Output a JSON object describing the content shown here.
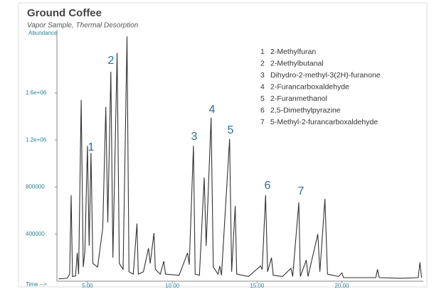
{
  "chart_data": {
    "type": "line",
    "title": "Ground Coffee",
    "subtitle": "Vapor Sample, Thermal Desorption",
    "y_label": "Abundance",
    "x_label": "Time -->",
    "color": "#333333",
    "x": [
      3.3,
      3.8,
      3.95,
      4.04,
      4.12,
      4.3,
      4.4,
      4.48,
      4.63,
      4.75,
      4.85,
      5.0,
      5.1,
      5.21,
      5.32,
      5.6,
      5.9,
      6.08,
      6.2,
      6.38,
      6.5,
      6.75,
      6.88,
      7.1,
      7.33,
      7.45,
      7.7,
      7.92,
      8.0,
      8.3,
      8.6,
      8.7,
      8.92,
      9.0,
      9.3,
      9.5,
      9.6,
      10.4,
      10.9,
      11.0,
      11.25,
      11.35,
      11.6,
      11.88,
      12.0,
      12.29,
      12.42,
      12.7,
      12.8,
      12.9,
      13.38,
      13.5,
      13.71,
      13.8,
      14.5,
      15.2,
      15.3,
      15.5,
      15.62,
      15.85,
      15.95,
      16.5,
      17.0,
      17.1,
      17.46,
      17.55,
      17.9,
      18.0,
      18.58,
      18.7,
      19.0,
      19.15,
      19.8,
      20.0,
      20.1,
      22.0,
      22.1,
      22.2,
      23.5,
      24.5,
      24.6,
      24.7
    ],
    "values": [
      20000,
      25000,
      60000,
      730000,
      40000,
      45000,
      240000,
      60000,
      1540000,
      120000,
      250000,
      1150000,
      300000,
      1090000,
      150000,
      120000,
      450000,
      1480000,
      500000,
      1780000,
      200000,
      1940000,
      150000,
      100000,
      2080000,
      80000,
      60000,
      490000,
      60000,
      80000,
      280000,
      150000,
      410000,
      100000,
      60000,
      170000,
      60000,
      50000,
      240000,
      140000,
      1150000,
      60000,
      50000,
      880000,
      300000,
      1390000,
      120000,
      60000,
      130000,
      50000,
      1210000,
      80000,
      640000,
      60000,
      40000,
      130000,
      100000,
      730000,
      80000,
      200000,
      50000,
      40000,
      110000,
      40000,
      670000,
      40000,
      180000,
      40000,
      400000,
      80000,
      700000,
      60000,
      40000,
      70000,
      30000,
      30000,
      100000,
      30000,
      25000,
      30000,
      160000,
      30000
    ],
    "xlim": [
      3.2,
      24.8
    ],
    "ylim": [
      0,
      2100000
    ],
    "xticks": [
      {
        "value": 5,
        "label": "5.00"
      },
      {
        "value": 10,
        "label": "10.00"
      },
      {
        "value": 15,
        "label": "15.00"
      },
      {
        "value": 20,
        "label": "20.00"
      }
    ],
    "yticks": [
      400000,
      800000,
      {
        "value": 1200000,
        "label": "1.2e+06"
      },
      {
        "value": 1600000,
        "label": "1.6e+06"
      }
    ],
    "peak_labels": [
      "1",
      "2",
      "3",
      "4",
      "5",
      "6",
      "7"
    ],
    "legend_items": [
      {
        "number": "1",
        "name": "2-Methylfuran"
      },
      {
        "number": "2",
        "name": "2-Methylbutanal"
      },
      {
        "number": "3",
        "name": "Dihydro-2-methyl-3(2H)-furanone"
      },
      {
        "number": "4",
        "name": "2-Furancarboxaldehyde"
      },
      {
        "number": "5",
        "name": "2-Furanmethanol"
      },
      {
        "number": "6",
        "name": "2,5-Dimethylpyrazine"
      },
      {
        "number": "7",
        "name": "5-Methyl-2-furancarboxaldehyde"
      }
    ]
  }
}
